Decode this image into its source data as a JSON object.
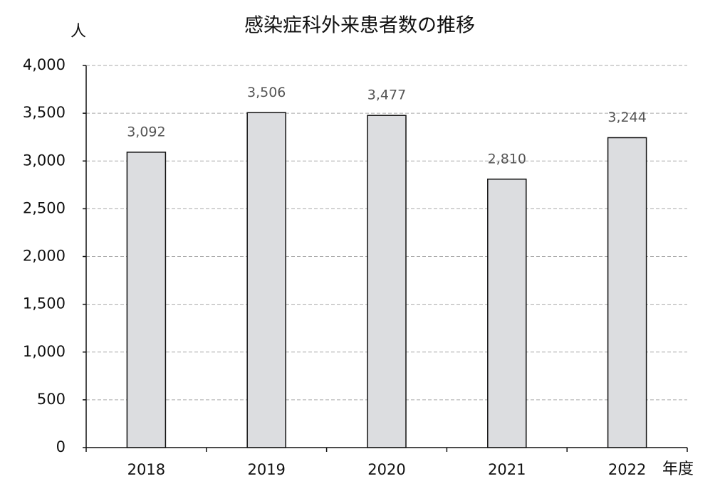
{
  "chart_data": {
    "type": "bar",
    "title": "感染症科外来患者数の推移",
    "y_label": "人",
    "x_label": "年度",
    "categories": [
      "2018",
      "2019",
      "2020",
      "2021",
      "2022"
    ],
    "values": [
      3092,
      3506,
      3477,
      2810,
      3244
    ],
    "value_labels": [
      "3,092",
      "3,506",
      "3,477",
      "2,810",
      "3,244"
    ],
    "color": "#dcdde0",
    "ylim": [
      0,
      4000
    ],
    "yticks": [
      0,
      500,
      {
        "value": 1000,
        "label": "1,000"
      },
      {
        "value": 1500,
        "label": "1,500"
      },
      {
        "value": 2000,
        "label": "2,000"
      },
      {
        "value": 2500,
        "label": "2,500"
      },
      {
        "value": 3000,
        "label": "3,000"
      },
      {
        "value": 3500,
        "label": "3,500"
      },
      {
        "value": 4000,
        "label": "4,000"
      }
    ],
    "grid": true
  }
}
